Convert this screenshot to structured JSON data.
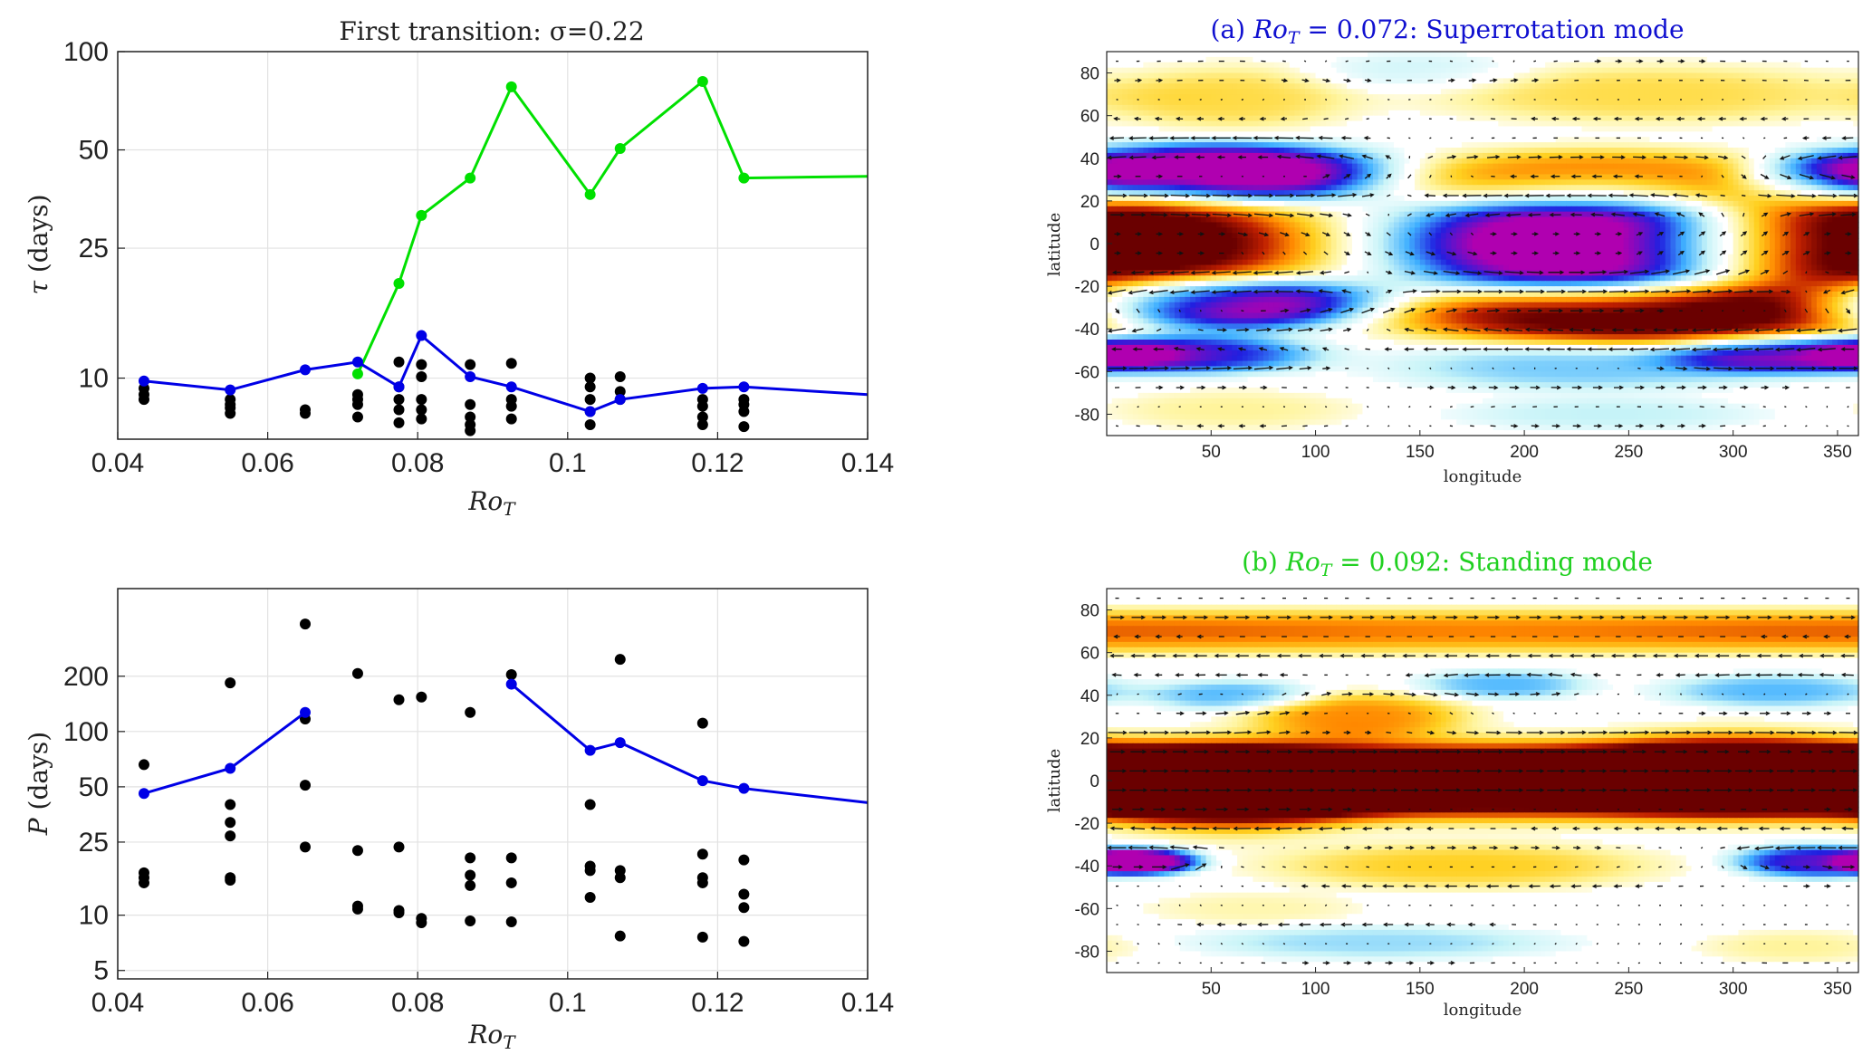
{
  "chart_data": [
    {
      "id": "tau",
      "type": "line",
      "title": "First transition: σ=0.22",
      "xlabel": "Ro_T",
      "ylabel": "τ (days)",
      "xlim": [
        0.04,
        0.14
      ],
      "ylim": [
        6.5,
        100
      ],
      "yscale": "log",
      "grid": true,
      "xticks": [
        0.04,
        0.06,
        0.08,
        0.1,
        0.12,
        0.14
      ],
      "xtick_labels": [
        "0.04",
        "0.06",
        "0.08",
        "0.1",
        "0.12",
        "0.14"
      ],
      "yticks": [
        10,
        25,
        50,
        100
      ],
      "ytick_labels": [
        "10",
        "25",
        "50",
        "100"
      ],
      "series": [
        {
          "color": "#00e000",
          "x": [
            0.072,
            0.0775,
            0.0805,
            0.087,
            0.0925,
            0.103,
            0.107,
            0.118,
            0.1235,
            0.14
          ],
          "y": [
            10.3,
            19.5,
            31.5,
            41.0,
            78.0,
            36.5,
            50.5,
            81.0,
            41.0,
            41.5
          ],
          "markers": [
            true,
            true,
            true,
            true,
            true,
            true,
            true,
            true,
            true,
            false
          ]
        },
        {
          "color": "#0000e6",
          "x": [
            0.0435,
            0.055,
            0.065,
            0.072,
            0.0775,
            0.0805,
            0.087,
            0.0925,
            0.103,
            0.107,
            0.118,
            0.1235,
            0.14
          ],
          "y": [
            9.8,
            9.2,
            10.6,
            11.2,
            9.4,
            13.5,
            10.1,
            9.4,
            7.9,
            8.6,
            9.3,
            9.4,
            8.9
          ],
          "markers": [
            true,
            true,
            true,
            true,
            true,
            true,
            true,
            true,
            true,
            true,
            true,
            true,
            false
          ]
        }
      ],
      "scatter": {
        "color": "#000000",
        "x": [
          0.0435,
          0.0435,
          0.0435,
          0.055,
          0.055,
          0.055,
          0.055,
          0.065,
          0.065,
          0.072,
          0.072,
          0.072,
          0.072,
          0.0775,
          0.0775,
          0.0775,
          0.0775,
          0.0775,
          0.0805,
          0.0805,
          0.0805,
          0.0805,
          0.0805,
          0.087,
          0.087,
          0.087,
          0.087,
          0.087,
          0.0925,
          0.0925,
          0.0925,
          0.0925,
          0.103,
          0.103,
          0.103,
          0.103,
          0.103,
          0.107,
          0.107,
          0.107,
          0.118,
          0.118,
          0.118,
          0.118,
          0.1235,
          0.1235,
          0.1235,
          0.1235
        ],
        "y": [
          9.3,
          8.9,
          8.6,
          8.6,
          8.3,
          8.1,
          7.8,
          8.0,
          7.8,
          8.9,
          8.6,
          8.3,
          7.6,
          11.2,
          9.4,
          8.6,
          8.0,
          7.3,
          11.0,
          10.1,
          8.6,
          8.0,
          7.5,
          11.0,
          8.3,
          7.6,
          7.2,
          6.9,
          11.1,
          8.6,
          8.2,
          7.5,
          10.0,
          9.4,
          8.6,
          7.9,
          7.2,
          10.1,
          9.1,
          8.6,
          8.2,
          7.6,
          7.2,
          8.6,
          8.6,
          8.3,
          7.9,
          7.1
        ]
      }
    },
    {
      "id": "period",
      "type": "line",
      "xlabel": "Ro_T",
      "ylabel": "P (days)",
      "xlim": [
        0.04,
        0.14
      ],
      "ylim": [
        4.5,
        600
      ],
      "yscale": "log",
      "grid": true,
      "xticks": [
        0.04,
        0.06,
        0.08,
        0.1,
        0.12,
        0.14
      ],
      "xtick_labels": [
        "0.04",
        "0.06",
        "0.08",
        "0.1",
        "0.12",
        "0.14"
      ],
      "yticks": [
        5,
        10,
        25,
        50,
        100,
        200
      ],
      "ytick_labels": [
        "5",
        "10",
        "25",
        "50",
        "100",
        "200"
      ],
      "series": [
        {
          "color": "#0000e6",
          "segments": [
            {
              "x": [
                0.0435,
                0.055,
                0.065
              ],
              "y": [
                46,
                63,
                127
              ]
            },
            {
              "x": [
                0.0925,
                0.103,
                0.107,
                0.118,
                0.1235,
                0.14
              ],
              "y": [
                181,
                79,
                87,
                54,
                49,
                41
              ],
              "last_marker": false
            }
          ]
        }
      ],
      "scatter": {
        "color": "#000000",
        "x": [
          0.0435,
          0.0435,
          0.0435,
          0.0435,
          0.055,
          0.055,
          0.055,
          0.055,
          0.055,
          0.055,
          0.065,
          0.065,
          0.065,
          0.065,
          0.072,
          0.072,
          0.072,
          0.072,
          0.0775,
          0.0775,
          0.0775,
          0.0775,
          0.0805,
          0.0805,
          0.0805,
          0.087,
          0.087,
          0.087,
          0.087,
          0.087,
          0.0925,
          0.0925,
          0.0925,
          0.0925,
          0.103,
          0.103,
          0.103,
          0.103,
          0.107,
          0.107,
          0.107,
          0.107,
          0.118,
          0.118,
          0.118,
          0.118,
          0.118,
          0.1235,
          0.1235,
          0.1235,
          0.1235
        ],
        "y": [
          66,
          17,
          16,
          15,
          184,
          40,
          32,
          27,
          16,
          15.5,
          385,
          117,
          51,
          23.5,
          207,
          22.5,
          11.2,
          10.8,
          149,
          23.5,
          10.6,
          10.3,
          154,
          9.6,
          9.1,
          127,
          20.5,
          16.5,
          14.5,
          9.3,
          204,
          20.5,
          15,
          9.2,
          40,
          18.5,
          17.5,
          12.5,
          247,
          17.5,
          16,
          7.7,
          111,
          21.5,
          16,
          15,
          7.6,
          20,
          13,
          11,
          7.2
        ]
      }
    },
    {
      "id": "map-a",
      "type": "heatmap",
      "title": "(a) Ro_T = 0.072: Superrotation mode",
      "title_color": "#1010d0",
      "xlabel": "longitude",
      "ylabel": "latitude",
      "xlim": [
        0,
        360
      ],
      "ylim": [
        -90,
        90
      ],
      "xticks": [
        50,
        100,
        150,
        200,
        250,
        300,
        350
      ],
      "yticks": [
        80,
        60,
        40,
        20,
        0,
        -20,
        -40,
        -60,
        -80
      ],
      "palette": [
        "#b000b0",
        "#2020e0",
        "#40b0ff",
        "#c8f4f8",
        "#ffffff",
        "#fff5a0",
        "#ffd020",
        "#ff8800",
        "#c02000",
        "#6a0000"
      ],
      "features": [
        {
          "lon": 0,
          "lat": 0,
          "w": 145,
          "h": 34,
          "v": 1.0
        },
        {
          "lon": 235,
          "lat": 0,
          "w": 140,
          "h": 34,
          "v": -1.0
        },
        {
          "lon": 55,
          "lat": 33,
          "w": 120,
          "h": 18,
          "v": -1.0
        },
        {
          "lon": 55,
          "lat": -28,
          "w": 115,
          "h": 16,
          "v": -0.9
        },
        {
          "lon": 255,
          "lat": -33,
          "w": 175,
          "h": 18,
          "v": 0.95
        },
        {
          "lon": 235,
          "lat": 30,
          "w": 150,
          "h": 18,
          "v": 0.55
        },
        {
          "lon": 40,
          "lat": -52,
          "w": 90,
          "h": 12,
          "v": -0.6
        },
        {
          "lon": 330,
          "lat": -52,
          "w": 90,
          "h": 12,
          "v": -0.6
        },
        {
          "lon": 230,
          "lat": -58,
          "w": 140,
          "h": 14,
          "v": -0.3
        },
        {
          "lon": 60,
          "lat": 68,
          "w": 90,
          "h": 20,
          "v": 0.25
        },
        {
          "lon": 260,
          "lat": 70,
          "w": 160,
          "h": 18,
          "v": 0.25
        },
        {
          "lon": 150,
          "lat": 80,
          "w": 80,
          "h": 12,
          "v": -0.15
        },
        {
          "lon": 240,
          "lat": -80,
          "w": 110,
          "h": 10,
          "v": -0.18
        },
        {
          "lon": 60,
          "lat": -78,
          "w": 90,
          "h": 12,
          "v": 0.15
        },
        {
          "lon": 340,
          "lat": 30,
          "w": 60,
          "h": 16,
          "v": -0.4
        }
      ]
    },
    {
      "id": "map-b",
      "type": "heatmap",
      "title": "(b) Ro_T = 0.092: Standing mode",
      "title_color": "#20d020",
      "xlabel": "longitude",
      "ylabel": "latitude",
      "xlim": [
        0,
        360
      ],
      "ylim": [
        -90,
        90
      ],
      "xticks": [
        50,
        100,
        150,
        200,
        250,
        300,
        350
      ],
      "yticks": [
        80,
        60,
        40,
        20,
        0,
        -20,
        -40,
        -60,
        -80
      ],
      "palette": [
        "#b000b0",
        "#2020e0",
        "#40b0ff",
        "#c8f4f8",
        "#ffffff",
        "#fff5a0",
        "#ffd020",
        "#ff8800",
        "#c02000",
        "#6a0000"
      ],
      "features": [
        {
          "lon": 180,
          "lat": 0,
          "w": 500,
          "h": 22,
          "v": 1.0
        },
        {
          "lon": 60,
          "lat": -4,
          "w": 100,
          "h": 26,
          "v": 0.6
        },
        {
          "lon": 300,
          "lat": 4,
          "w": 110,
          "h": 24,
          "v": 0.5
        },
        {
          "lon": 120,
          "lat": 30,
          "w": 80,
          "h": 14,
          "v": 0.45
        },
        {
          "lon": 180,
          "lat": 70,
          "w": 500,
          "h": 14,
          "v": 0.3
        },
        {
          "lon": 170,
          "lat": -40,
          "w": 140,
          "h": 14,
          "v": 0.3
        },
        {
          "lon": 20,
          "lat": -38,
          "w": 40,
          "h": 8,
          "v": -0.8
        },
        {
          "lon": 340,
          "lat": -38,
          "w": 60,
          "h": 10,
          "v": -0.65
        },
        {
          "lon": 60,
          "lat": 40,
          "w": 60,
          "h": 9,
          "v": -0.35
        },
        {
          "lon": 190,
          "lat": 45,
          "w": 60,
          "h": 9,
          "v": -0.35
        },
        {
          "lon": 320,
          "lat": 42,
          "w": 80,
          "h": 10,
          "v": -0.35
        },
        {
          "lon": 130,
          "lat": -76,
          "w": 130,
          "h": 10,
          "v": -0.25
        },
        {
          "lon": 70,
          "lat": -60,
          "w": 80,
          "h": 10,
          "v": 0.12
        },
        {
          "lon": 330,
          "lat": -78,
          "w": 70,
          "h": 10,
          "v": 0.15
        }
      ]
    }
  ]
}
